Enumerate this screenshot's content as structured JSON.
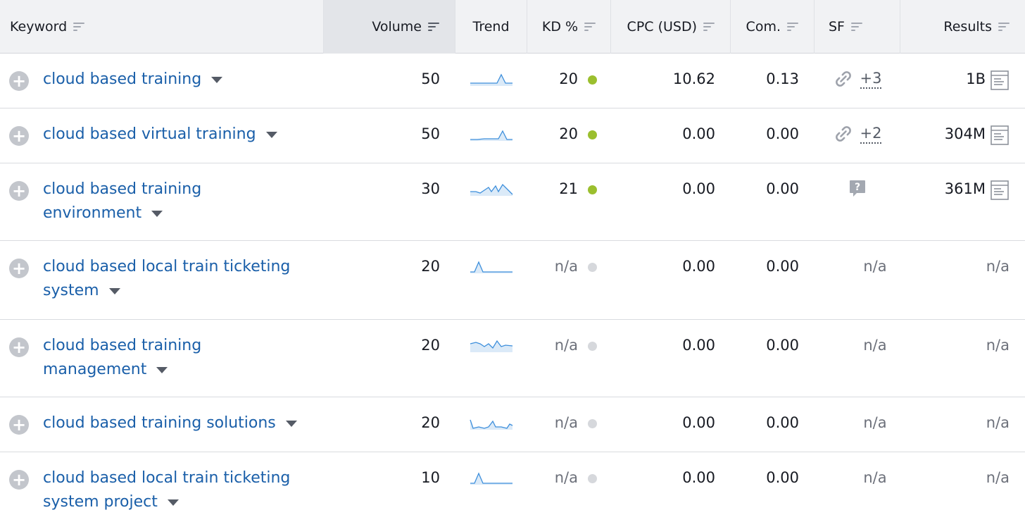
{
  "headers": [
    {
      "label": "Keyword"
    },
    {
      "label": "Volume"
    },
    {
      "label": "Trend"
    },
    {
      "label": "KD %"
    },
    {
      "label": "CPC (USD)"
    },
    {
      "label": "Com."
    },
    {
      "label": "SF"
    },
    {
      "label": "Results"
    }
  ],
  "rows": [
    {
      "keyword": "cloud based training",
      "volume": "50",
      "kd": "20",
      "cpc": "10.62",
      "com": "0.13",
      "sf_icon": "link-icon",
      "sf_more": "+3",
      "results": "1B"
    },
    {
      "keyword": "cloud based virtual training",
      "volume": "50",
      "kd": "20",
      "cpc": "0.00",
      "com": "0.00",
      "sf_icon": "link-icon",
      "sf_more": "+2",
      "results": "304M"
    },
    {
      "keyword": "cloud based training environment",
      "volume": "30",
      "kd": "21",
      "cpc": "0.00",
      "com": "0.00",
      "sf_icon": "question-icon",
      "results": "361M"
    },
    {
      "keyword": "cloud based local train ticketing system",
      "volume": "20",
      "kd": "n/a",
      "cpc": "0.00",
      "com": "0.00",
      "sf": "n/a",
      "results": "n/a"
    },
    {
      "keyword": "cloud based training management",
      "volume": "20",
      "kd": "n/a",
      "cpc": "0.00",
      "com": "0.00",
      "sf": "n/a",
      "results": "n/a"
    },
    {
      "keyword": "cloud based training solutions",
      "volume": "20",
      "kd": "n/a",
      "cpc": "0.00",
      "com": "0.00",
      "sf": "n/a",
      "results": "n/a"
    },
    {
      "keyword": "cloud based local train ticketing system project",
      "volume": "10",
      "kd": "n/a",
      "cpc": "0.00",
      "com": "0.00",
      "sf": "n/a",
      "results": "n/a"
    }
  ],
  "colors": {
    "link": "#1a5fa9",
    "kd_easy": "#9bbf2e",
    "kd_na": "#d6d8dc",
    "trend": "#3d8fdc"
  }
}
